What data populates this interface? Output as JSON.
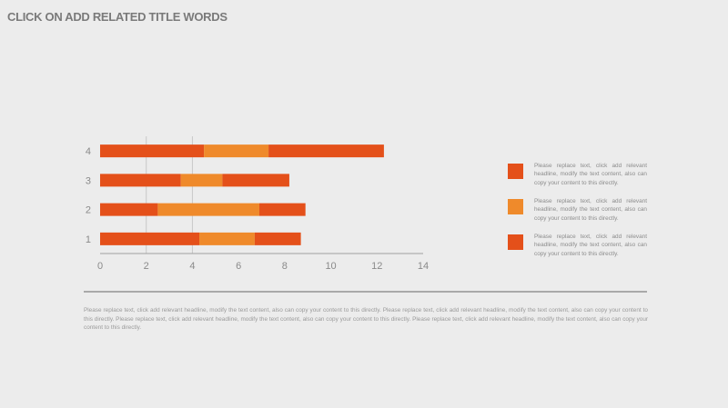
{
  "title": "CLICK ON ADD RELATED TITLE WORDS",
  "colors": {
    "primary": "#e4501a",
    "secondary": "#ef8a2b",
    "axis": "#a0a0a0",
    "grid": "#c8c8c8",
    "background": "#ececec"
  },
  "chart_data": {
    "type": "bar",
    "orientation": "horizontal",
    "stacked": true,
    "categories": [
      "1",
      "2",
      "3",
      "4"
    ],
    "series": [
      {
        "values": [
          4.3,
          2.5,
          3.5,
          4.5
        ],
        "color": "#e4501a"
      },
      {
        "values": [
          2.4,
          4.4,
          1.8,
          2.8
        ],
        "color": "#ef8a2b"
      },
      {
        "values": [
          2.0,
          2.0,
          2.9,
          5.0
        ],
        "color": "#e4501a"
      }
    ],
    "xlim": [
      0,
      14
    ],
    "xticks": [
      "0",
      "2",
      "4",
      "6",
      "8",
      "10",
      "12",
      "14"
    ],
    "grid": true,
    "legend_position": "right",
    "title": "",
    "xlabel": "",
    "ylabel": ""
  },
  "legend": [
    {
      "color": "#e4501a",
      "text": "Please replace text, click add relevant headline, modify the text content, also can copy your content to this directly."
    },
    {
      "color": "#ef8a2b",
      "text": "Please replace text, click add relevant headline, modify the text content, also can copy your content to this directly."
    },
    {
      "color": "#e4501a",
      "text": "Please replace text, click add relevant headline, modify the text content, also can copy your content to this directly."
    }
  ],
  "footer": "Please replace text, click add relevant headline, modify the text content, also can copy your content to this directly. Please replace text, click add relevant headline, modify the text content, also can copy your content to this directly. Please replace text, click add relevant headline, modify the text content, also can copy your content to this directly. Please replace text, click add relevant headline, modify the text content, also can copy your content to this directly."
}
